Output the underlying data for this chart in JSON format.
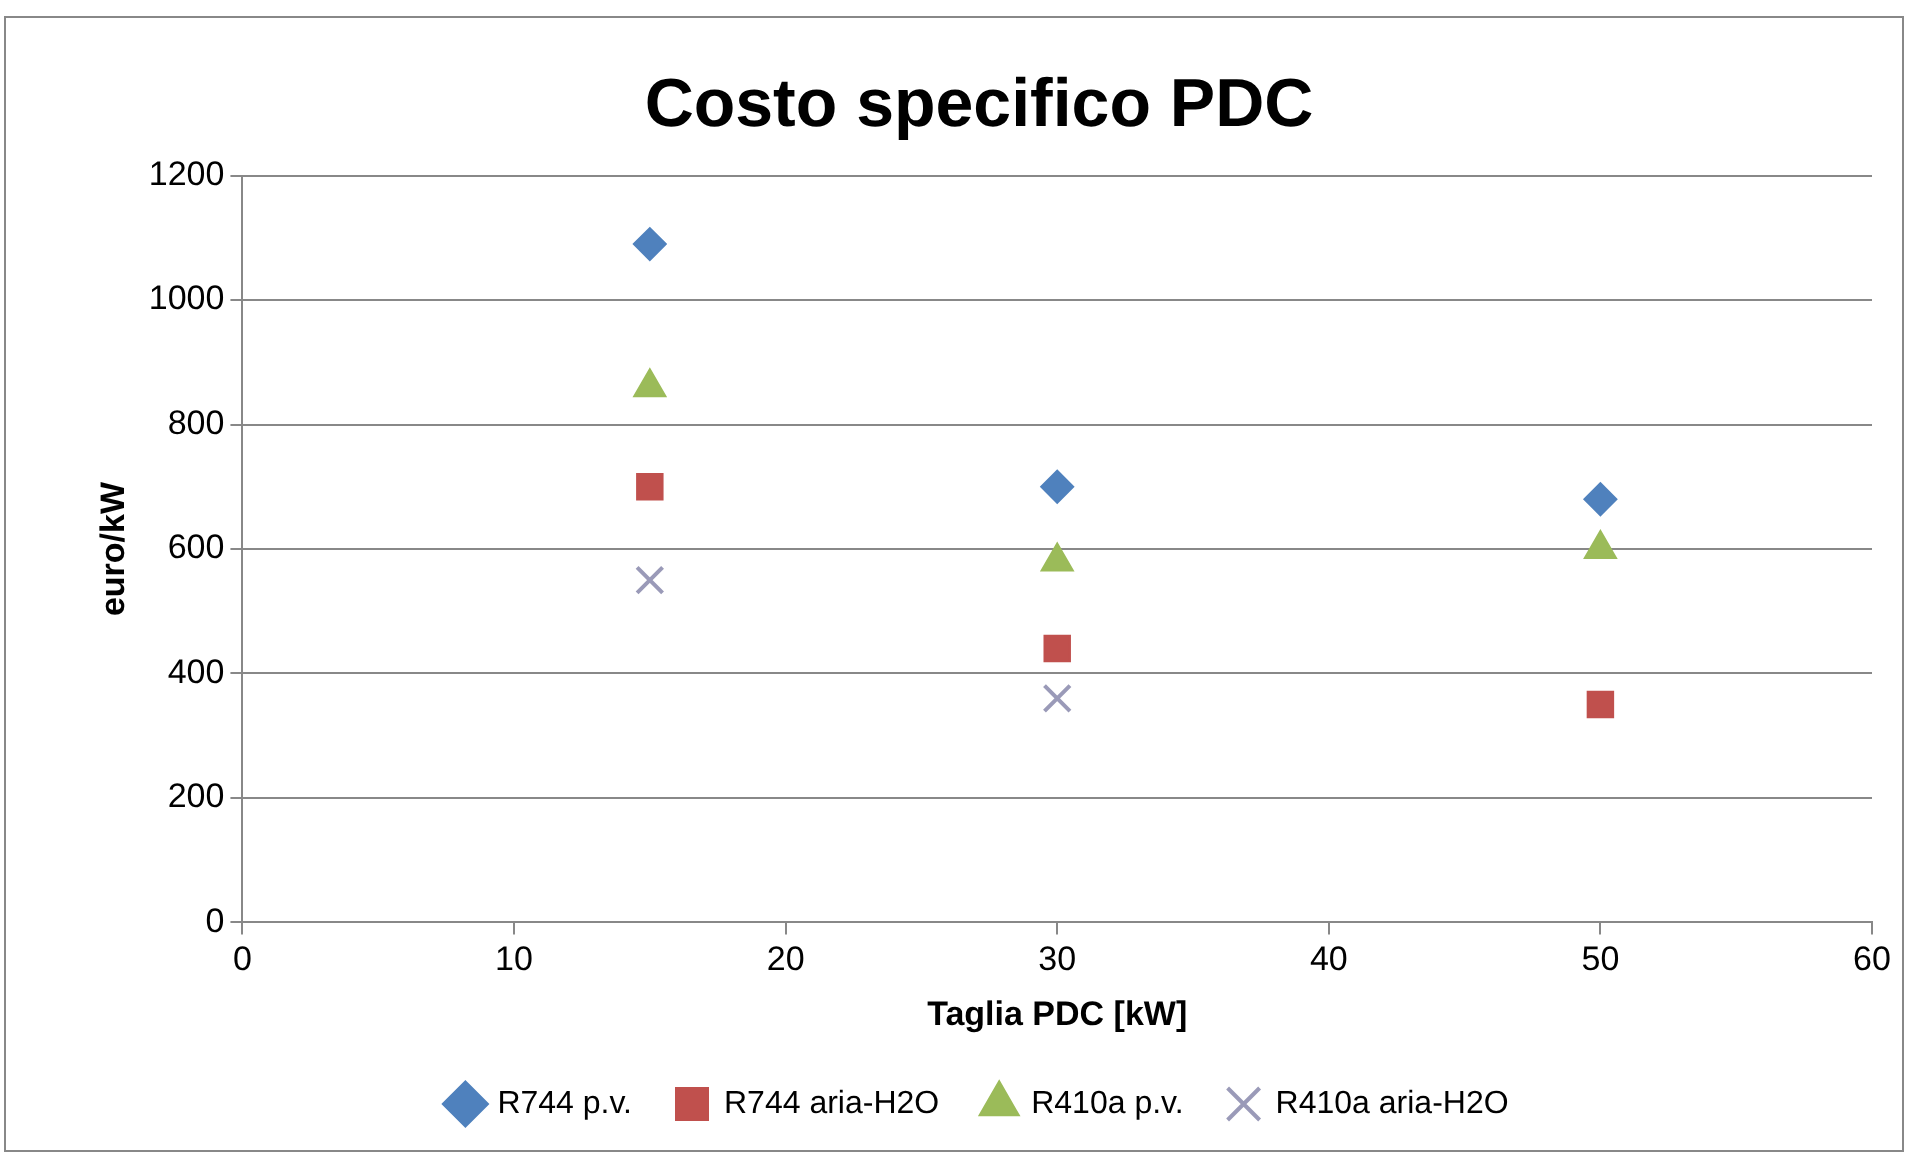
{
  "chart_data": {
    "type": "scatter",
    "title": "Costo specifico PDC",
    "xlabel": "Taglia PDC [kW]",
    "ylabel": "euro/kW",
    "x": [
      15,
      30,
      50
    ],
    "series": [
      {
        "name": "R744 p.v.",
        "color": "#4f81bd",
        "marker": "diamond",
        "values": [
          1090,
          700,
          680
        ]
      },
      {
        "name": "R744 aria-H2O",
        "color": "#c0504d",
        "marker": "square",
        "values": [
          700,
          440,
          350
        ]
      },
      {
        "name": "R410a p.v.",
        "color": "#9bbb59",
        "marker": "triangle",
        "values": [
          860,
          580,
          600
        ]
      },
      {
        "name": "R410a aria-H2O",
        "color": "#9a9ab8",
        "marker": "cross",
        "values": [
          550,
          360,
          null
        ]
      }
    ],
    "xlim": [
      0,
      60
    ],
    "xticks": [
      0,
      10,
      20,
      30,
      40,
      50,
      60
    ],
    "ylim": [
      0,
      1200
    ],
    "yticks": [
      0,
      200,
      400,
      600,
      800,
      1000,
      1200
    ],
    "grid": "y",
    "legend": "bottom"
  }
}
